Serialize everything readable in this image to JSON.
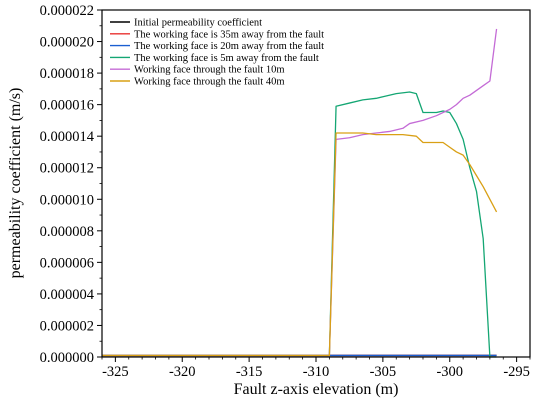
{
  "chart_data": {
    "type": "line",
    "xlabel": "Fault z-axis elevation (m)",
    "ylabel": "permeability coefficient (m/s)",
    "xlim": [
      -326,
      -294
    ],
    "ylim": [
      0,
      2.2e-05
    ],
    "x_ticks": [
      -325,
      -320,
      -315,
      -310,
      -305,
      -300,
      -295
    ],
    "x_tick_labels": [
      "-325",
      "-320",
      "-315",
      "-310",
      "-305",
      "-300",
      "-295"
    ],
    "y_ticks": [
      0,
      2e-06,
      4e-06,
      6e-06,
      8e-06,
      1e-05,
      1.2e-05,
      1.4e-05,
      1.6e-05,
      1.8e-05,
      2e-05,
      2.2e-05
    ],
    "y_tick_labels": [
      "0.000000",
      "0.000002",
      "0.000004",
      "0.000006",
      "0.000008",
      "0.000010",
      "0.000012",
      "0.000014",
      "0.000016",
      "0.000018",
      "0.000020",
      "0.000022"
    ],
    "legend_position": "top-left",
    "grid": false,
    "series": [
      {
        "name": "Initial permeability coefficient",
        "color": "#000000",
        "x": [
          -326,
          -296.5
        ],
        "y": [
          1e-07,
          1e-07
        ]
      },
      {
        "name": "The working face is 35m away from the fault",
        "color": "#e8312f",
        "x": [
          -326,
          -296.5
        ],
        "y": [
          1e-07,
          1e-07
        ]
      },
      {
        "name": "The working face is 20m away from the fault",
        "color": "#1a5fd1",
        "x": [
          -326,
          -296.5
        ],
        "y": [
          1e-07,
          1e-07
        ]
      },
      {
        "name": "The working face is 5m away from the fault",
        "color": "#14a673",
        "x": [
          -326,
          -309,
          -308.5,
          -307.5,
          -306.5,
          -305.5,
          -305,
          -304,
          -303,
          -302.5,
          -302,
          -301.5,
          -301,
          -300.5,
          -300,
          -299.5,
          -299,
          -298.5,
          -298,
          -297.5,
          -297,
          -296.5
        ],
        "y": [
          1e-07,
          1e-07,
          1.59e-05,
          1.61e-05,
          1.63e-05,
          1.64e-05,
          1.65e-05,
          1.67e-05,
          1.68e-05,
          1.67e-05,
          1.55e-05,
          1.55e-05,
          1.55e-05,
          1.56e-05,
          1.55e-05,
          1.48e-05,
          1.38e-05,
          1.2e-05,
          1.05e-05,
          7.5e-06,
          0,
          0
        ]
      },
      {
        "name": "Working face through the fault 10m",
        "color": "#c46bd6",
        "x": [
          -326,
          -309,
          -308.5,
          -307.5,
          -306.5,
          -305.5,
          -304.5,
          -303.5,
          -303,
          -302,
          -301,
          -300,
          -299.5,
          -299,
          -298.5,
          -298,
          -297.5,
          -297,
          -296.5
        ],
        "y": [
          1e-07,
          1e-07,
          1.38e-05,
          1.39e-05,
          1.41e-05,
          1.42e-05,
          1.43e-05,
          1.45e-05,
          1.48e-05,
          1.5e-05,
          1.53e-05,
          1.57e-05,
          1.6e-05,
          1.64e-05,
          1.66e-05,
          1.69e-05,
          1.72e-05,
          1.75e-05,
          2.08e-05
        ]
      },
      {
        "name": "Working face through the fault 40m",
        "color": "#d9a015",
        "x": [
          -326,
          -309,
          -308.5,
          -307.5,
          -306.5,
          -305.5,
          -304.5,
          -303.5,
          -302.5,
          -302,
          -301.5,
          -301,
          -300.5,
          -300,
          -299.5,
          -299,
          -298.5,
          -298,
          -297.5,
          -297,
          -296.5
        ],
        "y": [
          1e-07,
          1e-07,
          1.42e-05,
          1.42e-05,
          1.42e-05,
          1.41e-05,
          1.41e-05,
          1.41e-05,
          1.4e-05,
          1.36e-05,
          1.36e-05,
          1.36e-05,
          1.36e-05,
          1.33e-05,
          1.3e-05,
          1.28e-05,
          1.22e-05,
          1.15e-05,
          1.08e-05,
          1e-05,
          9.2e-06
        ]
      }
    ]
  }
}
